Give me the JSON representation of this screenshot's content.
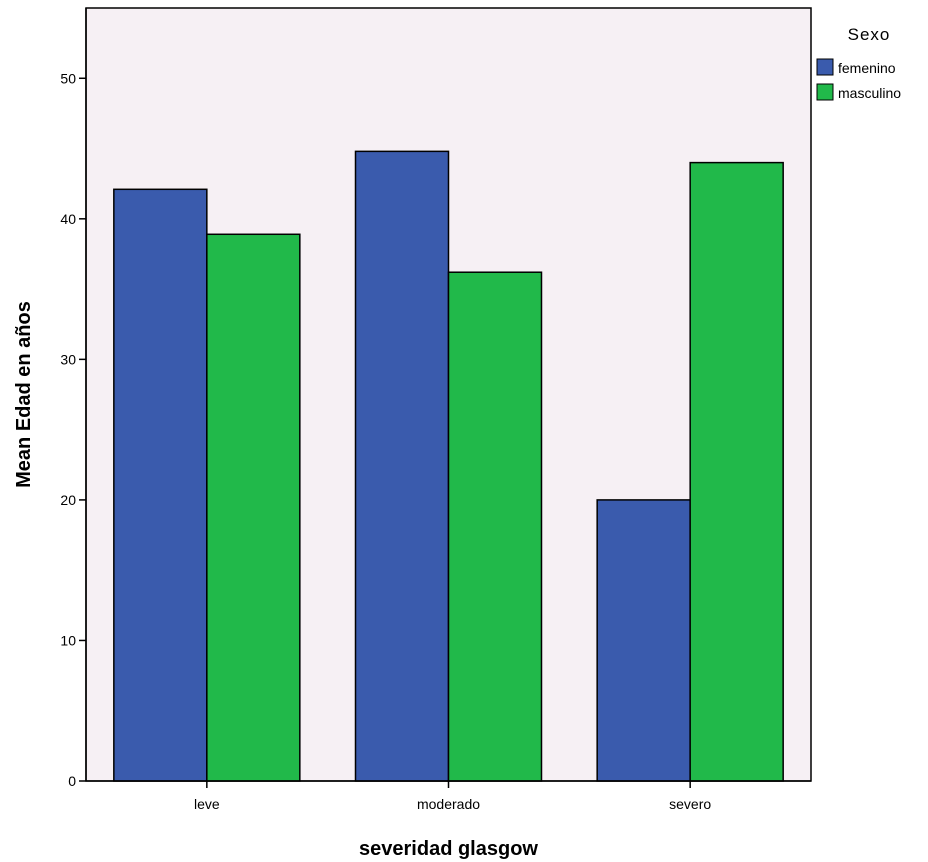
{
  "chart_data": {
    "type": "bar",
    "categories": [
      "leve",
      "moderado",
      "severo"
    ],
    "series": [
      {
        "name": "femenino",
        "values": [
          42.1,
          44.8,
          20.0
        ],
        "color": "#3a5bad"
      },
      {
        "name": "masculino",
        "values": [
          38.9,
          36.2,
          44.0
        ],
        "color": "#21b94a"
      }
    ],
    "xlabel": "severidad glasgow",
    "ylabel": "Mean Edad en años",
    "ylim": [
      0,
      55
    ],
    "yticks": [
      0,
      10,
      20,
      30,
      40,
      50
    ],
    "legend": {
      "title": "Sexo",
      "position": "right"
    },
    "plot_background": "#f6f0f4",
    "grid": false
  }
}
